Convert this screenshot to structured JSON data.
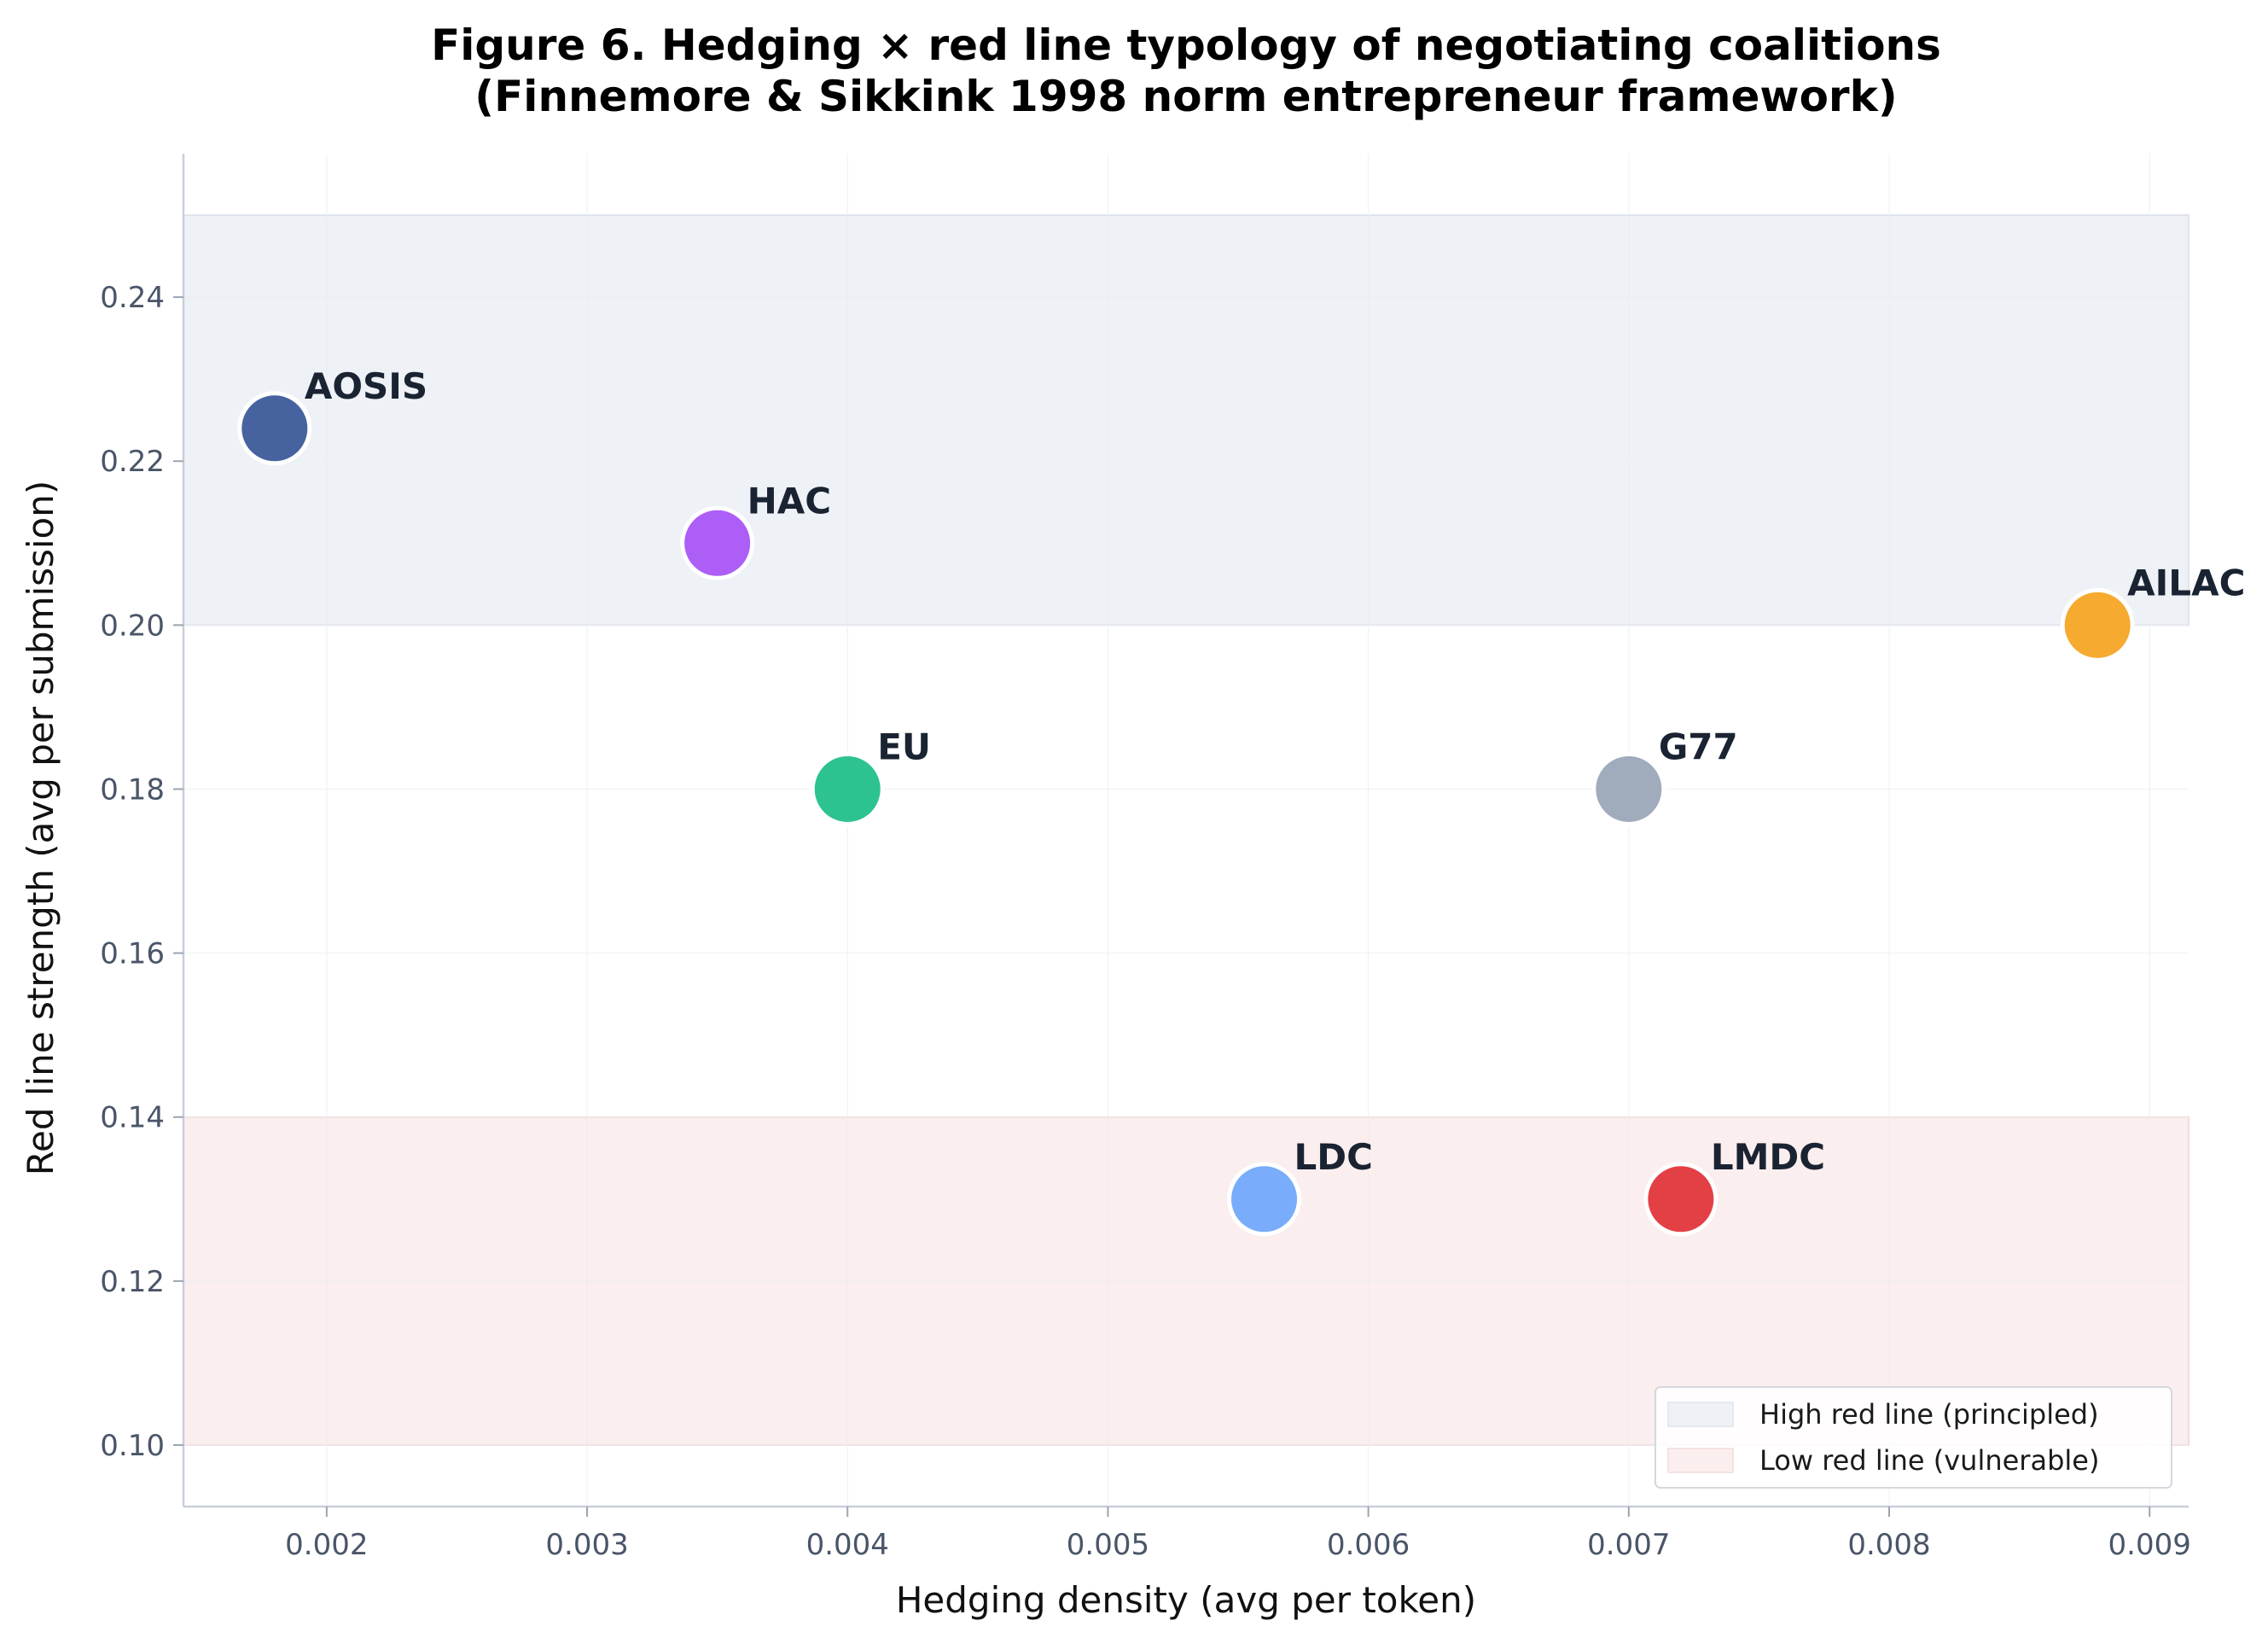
{
  "chart_data": {
    "type": "scatter",
    "title": "Figure 6. Hedging × red line typology of negotiating coalitions",
    "subtitle": "(Finnemore & Sikkink 1998 norm entrepreneur framework)",
    "xlabel": "Hedging density (avg per token)",
    "ylabel": "Red line strength (avg per submission)",
    "xlim": [
      0.00145,
      0.00915
    ],
    "ylim": [
      0.0925,
      0.2575
    ],
    "xticks": [
      0.002,
      0.003,
      0.004,
      0.005,
      0.006,
      0.007,
      0.008,
      0.009
    ],
    "xtick_labels": [
      "0.002",
      "0.003",
      "0.004",
      "0.005",
      "0.006",
      "0.007",
      "0.008",
      "0.009"
    ],
    "yticks": [
      0.1,
      0.12,
      0.14,
      0.16,
      0.18,
      0.2,
      0.22,
      0.24
    ],
    "ytick_labels": [
      "0.10",
      "0.12",
      "0.14",
      "0.16",
      "0.18",
      "0.20",
      "0.22",
      "0.24"
    ],
    "grid": true,
    "bands": [
      {
        "name": "High red line (principled)",
        "y_min": 0.2,
        "y_max": 0.25,
        "x_max": 0.00915,
        "color": "#eef1f6"
      },
      {
        "name": "Low red line (vulnerable)",
        "y_min": 0.1,
        "y_max": 0.14,
        "x_max": 0.00915,
        "color": "#fbeeee"
      }
    ],
    "legend_position": "bottom-right",
    "points": [
      {
        "label": "AOSIS",
        "x": 0.0018,
        "y": 0.224,
        "color": "#3c5a9a"
      },
      {
        "label": "HAC",
        "x": 0.0035,
        "y": 0.21,
        "color": "#a855f7"
      },
      {
        "label": "AILAC",
        "x": 0.0088,
        "y": 0.2,
        "color": "#f5a524"
      },
      {
        "label": "EU",
        "x": 0.004,
        "y": 0.18,
        "color": "#22c08a"
      },
      {
        "label": "G77",
        "x": 0.007,
        "y": 0.18,
        "color": "#9ba7b8"
      },
      {
        "label": "LDC",
        "x": 0.0056,
        "y": 0.13,
        "color": "#72a8fa"
      },
      {
        "label": "LMDC",
        "x": 0.0072,
        "y": 0.13,
        "color": "#e2363b"
      }
    ]
  }
}
